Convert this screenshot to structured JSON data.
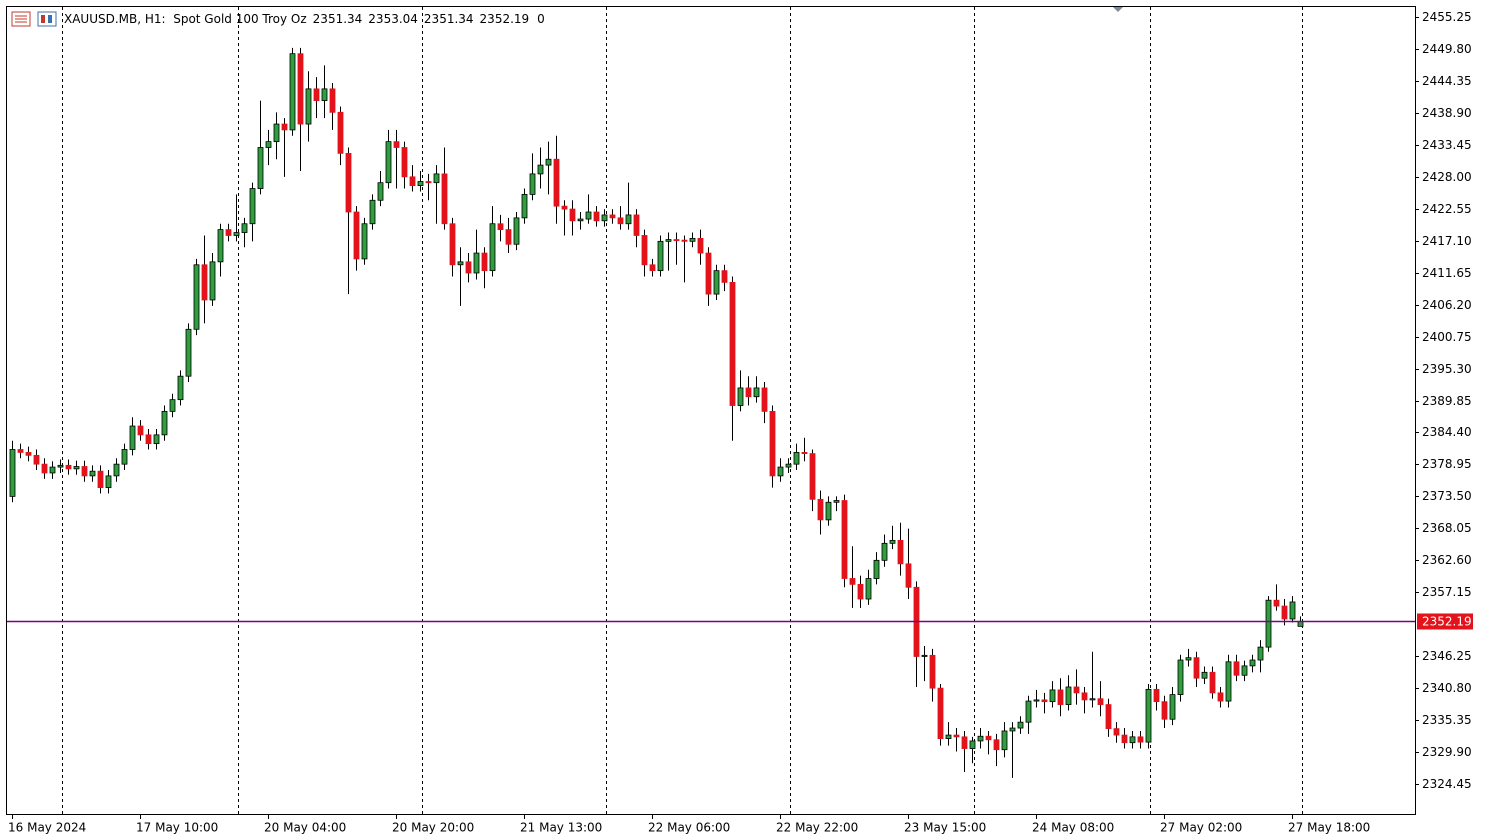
{
  "chart_data": {
    "type": "candlestick",
    "title": "XAUUSD.MB, H1:  Spot Gold 100 Troy Oz",
    "volume": 0,
    "up_color": "#2f9e3f",
    "down_color": "#e3121b",
    "ylim": [
      2319.17,
      2456.96
    ],
    "yticks": [
      2455.25,
      {
        "value": 2449.8,
        "label": "2449.80"
      },
      2444.35,
      {
        "value": 2438.9,
        "label": "2438.90"
      },
      2433.45,
      {
        "value": 2428,
        "label": "2428.00"
      },
      2422.55,
      {
        "value": 2417.1,
        "label": "2417.10"
      },
      2411.65,
      {
        "value": 2406.2,
        "label": "2406.20"
      },
      2400.75,
      {
        "value": 2395.3,
        "label": "2395.30"
      },
      2389.85,
      {
        "value": 2384.4,
        "label": "2384.40"
      },
      2378.95,
      {
        "value": 2373.5,
        "label": "2373.50"
      },
      2368.05,
      {
        "value": 2362.6,
        "label": "2362.60"
      },
      2357.15,
      2346.25,
      {
        "value": 2340.8,
        "label": "2340.80"
      },
      2335.35,
      {
        "value": 2329.9,
        "label": "2329.90"
      },
      2324.45
    ],
    "grid": false,
    "categories": [
      "16 May 2024",
      null,
      null,
      null,
      null,
      null,
      null,
      null,
      null,
      null,
      null,
      null,
      null,
      null,
      null,
      null,
      "17 May 10:00",
      null,
      null,
      null,
      null,
      null,
      null,
      null,
      null,
      null,
      null,
      null,
      null,
      null,
      null,
      null,
      "20 May 04:00",
      null,
      null,
      null,
      null,
      null,
      null,
      null,
      null,
      null,
      null,
      null,
      null,
      null,
      null,
      null,
      "20 May 20:00",
      null,
      null,
      null,
      null,
      null,
      null,
      null,
      null,
      null,
      null,
      null,
      null,
      null,
      null,
      null,
      "21 May 13:00",
      null,
      null,
      null,
      null,
      null,
      null,
      null,
      null,
      null,
      null,
      null,
      null,
      null,
      null,
      null,
      "22 May 06:00",
      null,
      null,
      null,
      null,
      null,
      null,
      null,
      null,
      null,
      null,
      null,
      null,
      null,
      null,
      null,
      "22 May 22:00",
      null,
      null,
      null,
      null,
      null,
      null,
      null,
      null,
      null,
      null,
      null,
      null,
      null,
      null,
      null,
      "23 May 15:00",
      null,
      null,
      null,
      null,
      null,
      null,
      null,
      null,
      null,
      null,
      null,
      null,
      null,
      null,
      null,
      "24 May 08:00",
      null,
      null,
      null,
      null,
      null,
      null,
      null,
      null,
      null,
      null,
      null,
      null,
      null,
      null,
      null,
      "27 May 02:00",
      null,
      null,
      null,
      null,
      null,
      null,
      null,
      null,
      null,
      null,
      null,
      null,
      null,
      null,
      null,
      "27 May 18:00",
      null
    ],
    "open": [
      2373.5,
      2381.5,
      2381.0,
      2380.5,
      2379.0,
      2377.5,
      2378.5,
      2378.8,
      2378.2,
      2378.6,
      2377.0,
      2377.8,
      2375.0,
      2377.0,
      2379.0,
      2381.5,
      2385.5,
      2384.0,
      2382.5,
      2384.0,
      2388.0,
      2390.0,
      2394.0,
      2402.0,
      2413.0,
      2407.0,
      2413.5,
      2419.0,
      2418.0,
      2418.5,
      2420.0,
      2426.0,
      2433.0,
      2434.0,
      2437.0,
      2436.0,
      2449.0,
      2437.0,
      2443.0,
      2441.0,
      2443.0,
      2439.0,
      2432.0,
      2422.0,
      2414.0,
      2420.0,
      2424.0,
      2427.0,
      2434.0,
      2433.0,
      2428.0,
      2426.5,
      2427.2,
      2427.0,
      2428.5,
      2420.0,
      2413.0,
      2413.5,
      2411.6,
      2415.0,
      2412.0,
      2420.0,
      2419.0,
      2416.5,
      2421.0,
      2425.0,
      2428.5,
      2430.0,
      2431.0,
      2423.0,
      2422.5,
      2420.5,
      2420.8,
      2422.0,
      2420.5,
      2421.5,
      2421.0,
      2420.0,
      2421.5,
      2418.0,
      2413.0,
      2412.0,
      2417.0,
      2417.3,
      2417.2,
      2417.0,
      2417.5,
      2415.0,
      2408.0,
      2412.0,
      2410.0,
      2389.0,
      2392.0,
      2390.5,
      2392.0,
      2388.0,
      2377.0,
      2378.5,
      2379.0,
      2381.0,
      2380.8,
      2373.0,
      2369.5,
      2372.5,
      2372.8,
      2359.5,
      2358.5,
      2356.0,
      2359.5,
      2362.6,
      2365.5,
      2366.0,
      2362.0,
      2358.0,
      2346.2,
      2346.4,
      2340.8,
      2332.2,
      2332.8,
      2332.5,
      2330.5,
      2331.8,
      2332.6,
      2332.0,
      2330.3,
      2333.5,
      2334.0,
      2335.0,
      2338.6,
      2338.8,
      2338.5,
      2340.5,
      2338.0,
      2341.0,
      2340.0,
      2338.8,
      2339.0,
      2338.0,
      2333.9,
      2332.8,
      2331.5,
      2332.5,
      2331.6,
      2340.6,
      2338.5,
      2335.5,
      2339.7,
      2345.6,
      2346.0,
      2342.5,
      2343.5,
      2340.0,
      2338.6,
      2345.3,
      2343.0,
      2344.6,
      2345.6,
      2347.8,
      2355.8,
      2354.8,
      2352.6,
      2351.34
    ],
    "high": [
      2383.0,
      2382.5,
      2382.0,
      2381.5,
      2380.0,
      2379.5,
      2379.8,
      2379.8,
      2379.6,
      2379.6,
      2378.8,
      2378.8,
      2378.0,
      2380.0,
      2382.5,
      2387.0,
      2386.5,
      2385.0,
      2385.0,
      2389.0,
      2391.0,
      2395.0,
      2403.0,
      2414.0,
      2418.0,
      2415.0,
      2420.0,
      2420.0,
      2425.0,
      2421.0,
      2427.0,
      2441.0,
      2436.0,
      2439.0,
      2438.0,
      2450.0,
      2450.0,
      2446.0,
      2445.0,
      2447.0,
      2444.0,
      2440.0,
      2433.0,
      2423.0,
      2421.0,
      2425.0,
      2429.0,
      2436.0,
      2436.0,
      2434.0,
      2430.0,
      2429.0,
      2428.5,
      2430.0,
      2433.0,
      2421.0,
      2416.0,
      2415.0,
      2419.0,
      2416.0,
      2423.0,
      2421.5,
      2421.0,
      2422.0,
      2426.0,
      2432.0,
      2433.0,
      2434.0,
      2435.0,
      2424.0,
      2424.0,
      2422.0,
      2425.0,
      2423.0,
      2422.5,
      2422.5,
      2423.0,
      2427.0,
      2422.5,
      2419.0,
      2414.0,
      2418.0,
      2418.5,
      2418.5,
      2418.0,
      2418.5,
      2419.0,
      2416.0,
      2413.0,
      2413.0,
      2411.0,
      2395.0,
      2394.0,
      2394.0,
      2393.0,
      2389.0,
      2380.0,
      2380.0,
      2382.5,
      2383.5,
      2381.5,
      2374.5,
      2373.5,
      2373.5,
      2373.8,
      2365.0,
      2360.0,
      2361.0,
      2364.0,
      2367.0,
      2368.5,
      2369.0,
      2368.0,
      2359.0,
      2348.0,
      2347.5,
      2341.5,
      2335.0,
      2334.0,
      2333.5,
      2332.5,
      2334.0,
      2333.5,
      2333.0,
      2335.0,
      2335.0,
      2336.0,
      2339.5,
      2340.5,
      2340.0,
      2342.0,
      2342.5,
      2343.0,
      2344.0,
      2341.0,
      2347.0,
      2342.0,
      2339.0,
      2335.0,
      2334.0,
      2333.5,
      2333.5,
      2341.5,
      2341.5,
      2339.5,
      2341.0,
      2346.5,
      2347.5,
      2347.0,
      2344.5,
      2344.5,
      2341.0,
      2346.5,
      2346.5,
      2345.5,
      2346.5,
      2349.0,
      2356.5,
      2358.5,
      2356.0,
      2356.5,
      2353.04
    ],
    "low": [
      2372.5,
      2380.0,
      2379.5,
      2378.0,
      2376.5,
      2376.5,
      2377.5,
      2377.2,
      2377.2,
      2376.0,
      2376.0,
      2374.0,
      2374.0,
      2376.0,
      2378.0,
      2380.5,
      2383.0,
      2381.5,
      2381.5,
      2383.0,
      2387.0,
      2389.0,
      2393.0,
      2401.0,
      2403.0,
      2406.0,
      2411.0,
      2417.0,
      2417.0,
      2416.0,
      2417.0,
      2425.0,
      2430.0,
      2431.0,
      2428.0,
      2435.0,
      2429.0,
      2434.0,
      2438.0,
      2438.0,
      2436.0,
      2430.0,
      2408.0,
      2412.0,
      2413.0,
      2419.0,
      2423.0,
      2426.0,
      2426.0,
      2426.0,
      2425.5,
      2425.5,
      2424.0,
      2420.0,
      2419.0,
      2411.0,
      2406.0,
      2410.0,
      2410.5,
      2409.0,
      2411.0,
      2417.0,
      2415.0,
      2415.5,
      2420.0,
      2424.0,
      2426.0,
      2425.0,
      2420.0,
      2418.0,
      2418.0,
      2419.0,
      2420.0,
      2419.5,
      2419.5,
      2420.0,
      2419.0,
      2419.0,
      2416.0,
      2411.0,
      2411.0,
      2411.0,
      2412.0,
      2413.0,
      2410.0,
      2416.0,
      2413.0,
      2406.0,
      2407.0,
      2408.5,
      2383.0,
      2388.0,
      2389.0,
      2389.5,
      2386.0,
      2375.0,
      2376.0,
      2377.5,
      2378.0,
      2379.5,
      2371.0,
      2367.0,
      2368.5,
      2371.0,
      2358.0,
      2354.5,
      2354.5,
      2355.0,
      2358.5,
      2361.5,
      2364.5,
      2360.0,
      2356.0,
      2341.0,
      2342.0,
      2338.5,
      2331.0,
      2331.0,
      2330.0,
      2326.5,
      2328.0,
      2330.5,
      2329.5,
      2327.5,
      2329.0,
      2325.5,
      2333.0,
      2333.0,
      2337.5,
      2336.5,
      2337.5,
      2336.0,
      2337.0,
      2338.0,
      2336.5,
      2337.5,
      2336.0,
      2332.5,
      2331.5,
      2330.5,
      2330.5,
      2330.5,
      2330.5,
      2337.0,
      2334.0,
      2334.5,
      2338.5,
      2344.5,
      2341.0,
      2341.5,
      2339.0,
      2337.5,
      2337.5,
      2342.0,
      2342.0,
      2343.5,
      2343.5,
      2347.0,
      2354.0,
      2351.5,
      2352.0,
      2351.34
    ],
    "close": [
      2381.5,
      2381.0,
      2380.5,
      2379.0,
      2377.5,
      2378.5,
      2378.8,
      2378.2,
      2378.6,
      2377.0,
      2377.8,
      2375.0,
      2377.0,
      2379.0,
      2381.5,
      2385.5,
      2384.0,
      2382.5,
      2384.0,
      2388.0,
      2390.0,
      2394.0,
      2402.0,
      2413.0,
      2407.0,
      2413.5,
      2419.0,
      2418.0,
      2418.5,
      2420.0,
      2426.0,
      2433.0,
      2434.0,
      2437.0,
      2436.0,
      2449.0,
      2437.0,
      2443.0,
      2441.0,
      2443.0,
      2439.0,
      2432.0,
      2422.0,
      2414.0,
      2420.0,
      2424.0,
      2427.0,
      2434.0,
      2433.0,
      2428.0,
      2426.5,
      2427.2,
      2427.0,
      2428.5,
      2420.0,
      2413.0,
      2413.5,
      2411.6,
      2415.0,
      2412.0,
      2420.0,
      2419.0,
      2416.5,
      2421.0,
      2425.0,
      2428.5,
      2430.0,
      2431.0,
      2423.0,
      2422.5,
      2420.5,
      2420.8,
      2422.0,
      2420.5,
      2421.5,
      2421.0,
      2420.0,
      2421.5,
      2418.0,
      2413.0,
      2412.0,
      2417.0,
      2417.3,
      2417.2,
      2417.0,
      2417.5,
      2415.0,
      2408.0,
      2412.0,
      2410.0,
      2389.0,
      2392.0,
      2390.5,
      2392.0,
      2388.0,
      2377.0,
      2378.5,
      2379.0,
      2381.0,
      2380.8,
      2373.0,
      2369.5,
      2372.5,
      2372.8,
      2359.5,
      2358.5,
      2356.0,
      2359.5,
      2362.6,
      2365.5,
      2366.0,
      2362.0,
      2358.0,
      2346.2,
      2346.4,
      2340.8,
      2332.2,
      2332.8,
      2332.5,
      2330.5,
      2331.8,
      2332.6,
      2332.0,
      2330.3,
      2333.5,
      2334.0,
      2335.0,
      2338.6,
      2338.8,
      2338.5,
      2340.5,
      2338.0,
      2341.0,
      2340.0,
      2338.8,
      2339.0,
      2338.0,
      2333.9,
      2332.8,
      2331.5,
      2332.5,
      2331.6,
      2340.6,
      2338.5,
      2335.5,
      2339.7,
      2345.6,
      2346.0,
      2342.5,
      2343.5,
      2340.0,
      2338.6,
      2345.3,
      2343.0,
      2344.6,
      2345.6,
      2347.8,
      2355.8,
      2354.8,
      2352.6,
      2355.5,
      2352.19
    ]
  }
}
